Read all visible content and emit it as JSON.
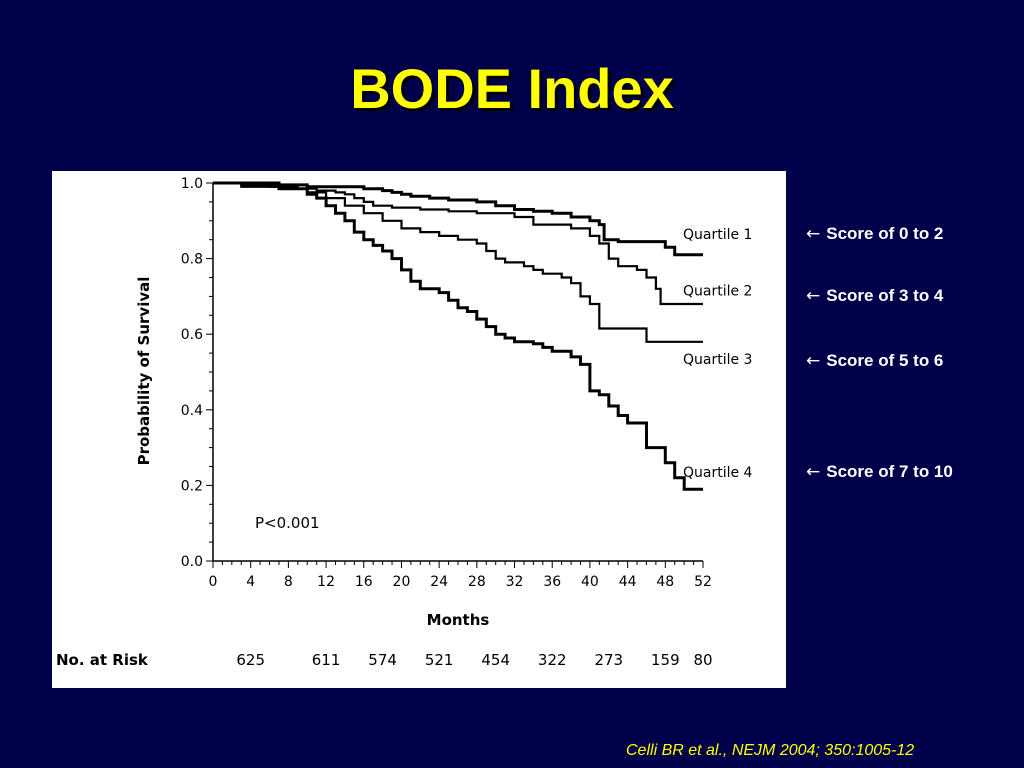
{
  "slide": {
    "title": "BODE Index",
    "citation": "Celli BR et al., NEJM 2004; 350:1005-12"
  },
  "annotations": [
    {
      "arrow": "←",
      "text": "Score of 0 to 2"
    },
    {
      "arrow": "←",
      "text": "Score of 3 to 4"
    },
    {
      "arrow": "←",
      "text": "Score of 5 to 6"
    },
    {
      "arrow": "←",
      "text": "Score of 7 to 10"
    }
  ],
  "chart_data": {
    "type": "line",
    "style": "step",
    "xlabel": "Months",
    "ylabel": "Probability of Survival",
    "xlim": [
      0,
      52
    ],
    "ylim": [
      0.0,
      1.0
    ],
    "x_ticks": [
      "0",
      "4",
      "8",
      "12",
      "16",
      "20",
      "24",
      "28",
      "32",
      "36",
      "40",
      "44",
      "48",
      "52"
    ],
    "y_ticks": [
      "0.0",
      "0.2",
      "0.4",
      "0.6",
      "0.8",
      "1.0"
    ],
    "annotation": "P<0.001",
    "at_risk_label": "No. at Risk",
    "at_risk": [
      {
        "month": 4,
        "value": "625"
      },
      {
        "month": 12,
        "value": "611"
      },
      {
        "month": 18,
        "value": "574"
      },
      {
        "month": 24,
        "value": "521"
      },
      {
        "month": 30,
        "value": "454"
      },
      {
        "month": 36,
        "value": "322"
      },
      {
        "month": 42,
        "value": "273"
      },
      {
        "month": 48,
        "value": "159"
      },
      {
        "month": 52,
        "value": "80"
      }
    ],
    "series": [
      {
        "name": "Quartile 1",
        "points": [
          [
            0,
            1.0
          ],
          [
            7,
            0.995
          ],
          [
            10,
            0.99
          ],
          [
            16,
            0.985
          ],
          [
            18,
            0.98
          ],
          [
            19,
            0.975
          ],
          [
            20,
            0.97
          ],
          [
            21,
            0.965
          ],
          [
            23,
            0.96
          ],
          [
            25,
            0.955
          ],
          [
            28,
            0.95
          ],
          [
            30,
            0.94
          ],
          [
            32,
            0.93
          ],
          [
            34,
            0.925
          ],
          [
            36,
            0.92
          ],
          [
            38,
            0.91
          ],
          [
            40,
            0.9
          ],
          [
            41,
            0.89
          ],
          [
            41.5,
            0.85
          ],
          [
            43,
            0.845
          ],
          [
            48,
            0.83
          ],
          [
            49,
            0.81
          ],
          [
            52,
            0.81
          ]
        ]
      },
      {
        "name": "Quartile 2",
        "points": [
          [
            0,
            1.0
          ],
          [
            3,
            0.995
          ],
          [
            6,
            0.99
          ],
          [
            9,
            0.985
          ],
          [
            11,
            0.98
          ],
          [
            13,
            0.975
          ],
          [
            14,
            0.97
          ],
          [
            15,
            0.96
          ],
          [
            16,
            0.95
          ],
          [
            17,
            0.94
          ],
          [
            19,
            0.935
          ],
          [
            22,
            0.93
          ],
          [
            25,
            0.925
          ],
          [
            28,
            0.92
          ],
          [
            32,
            0.91
          ],
          [
            34,
            0.89
          ],
          [
            38,
            0.88
          ],
          [
            40,
            0.86
          ],
          [
            41,
            0.84
          ],
          [
            42,
            0.8
          ],
          [
            43,
            0.78
          ],
          [
            45,
            0.77
          ],
          [
            46,
            0.75
          ],
          [
            47,
            0.72
          ],
          [
            47.5,
            0.68
          ],
          [
            52,
            0.68
          ]
        ]
      },
      {
        "name": "Quartile 3",
        "points": [
          [
            0,
            1.0
          ],
          [
            3,
            0.99
          ],
          [
            7,
            0.985
          ],
          [
            10,
            0.975
          ],
          [
            12,
            0.96
          ],
          [
            14,
            0.94
          ],
          [
            16,
            0.92
          ],
          [
            18,
            0.9
          ],
          [
            20,
            0.88
          ],
          [
            22,
            0.87
          ],
          [
            24,
            0.86
          ],
          [
            26,
            0.85
          ],
          [
            28,
            0.84
          ],
          [
            29,
            0.82
          ],
          [
            30,
            0.8
          ],
          [
            31,
            0.79
          ],
          [
            33,
            0.78
          ],
          [
            34,
            0.77
          ],
          [
            35,
            0.76
          ],
          [
            37,
            0.75
          ],
          [
            38,
            0.735
          ],
          [
            39,
            0.7
          ],
          [
            40,
            0.68
          ],
          [
            41,
            0.615
          ],
          [
            46,
            0.58
          ],
          [
            52,
            0.58
          ]
        ]
      },
      {
        "name": "Quartile 4",
        "points": [
          [
            0,
            1.0
          ],
          [
            4,
            0.995
          ],
          [
            7,
            0.985
          ],
          [
            10,
            0.97
          ],
          [
            11,
            0.96
          ],
          [
            12,
            0.94
          ],
          [
            13,
            0.92
          ],
          [
            14,
            0.9
          ],
          [
            15,
            0.87
          ],
          [
            16,
            0.85
          ],
          [
            17,
            0.835
          ],
          [
            18,
            0.82
          ],
          [
            19,
            0.8
          ],
          [
            20,
            0.77
          ],
          [
            21,
            0.74
          ],
          [
            22,
            0.72
          ],
          [
            24,
            0.71
          ],
          [
            25,
            0.69
          ],
          [
            26,
            0.67
          ],
          [
            27,
            0.66
          ],
          [
            28,
            0.64
          ],
          [
            29,
            0.62
          ],
          [
            30,
            0.6
          ],
          [
            31,
            0.59
          ],
          [
            32,
            0.58
          ],
          [
            34,
            0.575
          ],
          [
            35,
            0.565
          ],
          [
            36,
            0.555
          ],
          [
            38,
            0.54
          ],
          [
            39,
            0.52
          ],
          [
            40,
            0.45
          ],
          [
            41,
            0.44
          ],
          [
            42,
            0.41
          ],
          [
            43,
            0.385
          ],
          [
            44,
            0.365
          ],
          [
            46,
            0.3
          ],
          [
            48,
            0.26
          ],
          [
            49,
            0.22
          ],
          [
            50,
            0.19
          ],
          [
            52,
            0.19
          ]
        ]
      }
    ]
  }
}
